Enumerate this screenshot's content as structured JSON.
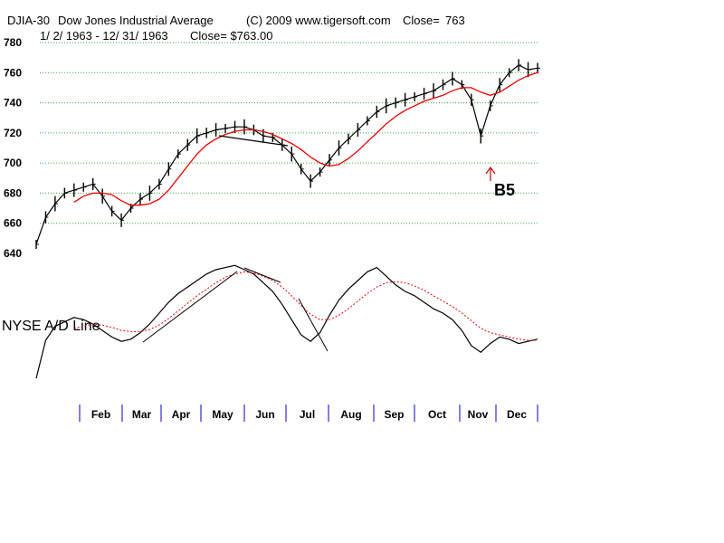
{
  "header": {
    "symbol": "DJIA-30",
    "name": "Dow Jones Industrial Average",
    "copyright": "(C) 2009 www.tigersoft.com",
    "close_label": "Close=",
    "close_value": "763",
    "date_range": "1/ 2/ 1963 -  12/ 31/ 1963",
    "close_line": "Close= $763.00"
  },
  "chart_data": [
    {
      "type": "line",
      "title": "DJIA-30  Dow Jones Industrial Average",
      "ylim": [
        640,
        780
      ],
      "y_ticks": [
        "780",
        "760",
        "740",
        "720",
        "700",
        "680",
        "660",
        "640"
      ],
      "grid": "horizontal dotted green",
      "x": [
        "1/2",
        "1/9",
        "1/16",
        "1/23",
        "1/30",
        "2/6",
        "2/13",
        "2/20",
        "2/27",
        "3/6",
        "3/13",
        "3/20",
        "3/27",
        "4/3",
        "4/10",
        "4/17",
        "4/24",
        "5/1",
        "5/8",
        "5/15",
        "5/22",
        "5/29",
        "6/5",
        "6/12",
        "6/19",
        "6/26",
        "7/3",
        "7/10",
        "7/17",
        "7/24",
        "7/31",
        "8/7",
        "8/14",
        "8/21",
        "8/28",
        "9/4",
        "9/11",
        "9/18",
        "9/25",
        "10/2",
        "10/9",
        "10/16",
        "10/23",
        "10/30",
        "11/6",
        "11/13",
        "11/20",
        "11/22",
        "11/27",
        "12/4",
        "12/11",
        "12/18",
        "12/25",
        "12/31"
      ],
      "series": [
        {
          "name": "DJIA",
          "color": "#000000",
          "values": [
            646,
            664,
            673,
            680,
            682,
            684,
            686,
            678,
            668,
            662,
            670,
            676,
            680,
            686,
            696,
            706,
            712,
            718,
            720,
            722,
            723,
            724,
            724,
            722,
            718,
            717,
            712,
            706,
            696,
            688,
            694,
            702,
            710,
            716,
            722,
            728,
            734,
            738,
            740,
            742,
            744,
            746,
            748,
            752,
            756,
            752,
            742,
            718,
            738,
            752,
            760,
            765,
            762,
            763
          ]
        },
        {
          "name": "Moving Average",
          "color": "#ee0000",
          "values": [
            null,
            null,
            null,
            null,
            674,
            678,
            680,
            680,
            679,
            675,
            672,
            672,
            673,
            676,
            682,
            690,
            698,
            706,
            712,
            716,
            719,
            721,
            722,
            722,
            721,
            719,
            716,
            713,
            709,
            704,
            700,
            698,
            699,
            703,
            708,
            714,
            720,
            726,
            731,
            735,
            738,
            741,
            743,
            745,
            748,
            750,
            750,
            747,
            745,
            747,
            751,
            755,
            758,
            760
          ]
        }
      ],
      "annotations": [
        {
          "text": "B5",
          "x": "11/22",
          "y": 712,
          "color": "#cc0000"
        }
      ]
    },
    {
      "type": "line",
      "title": "NYSE A/D Line",
      "x": [
        "1/2",
        "1/9",
        "1/16",
        "1/23",
        "1/30",
        "2/6",
        "2/13",
        "2/20",
        "2/27",
        "3/6",
        "3/13",
        "3/20",
        "3/27",
        "4/3",
        "4/10",
        "4/17",
        "4/24",
        "5/1",
        "5/8",
        "5/15",
        "5/22",
        "5/29",
        "6/5",
        "6/12",
        "6/19",
        "6/26",
        "7/3",
        "7/10",
        "7/17",
        "7/24",
        "7/31",
        "8/7",
        "8/14",
        "8/21",
        "8/28",
        "9/4",
        "9/11",
        "9/18",
        "9/25",
        "10/2",
        "10/9",
        "10/16",
        "10/23",
        "10/30",
        "11/6",
        "11/13",
        "11/20",
        "11/22",
        "11/27",
        "12/4",
        "12/11",
        "12/18",
        "12/25",
        "12/31"
      ],
      "series": [
        {
          "name": "NYSE A/D Line",
          "color": "#000000",
          "values": [
            10,
            45,
            58,
            62,
            66,
            64,
            60,
            54,
            48,
            44,
            46,
            52,
            60,
            70,
            80,
            88,
            94,
            100,
            106,
            110,
            112,
            114,
            110,
            106,
            98,
            90,
            78,
            64,
            50,
            44,
            52,
            68,
            82,
            92,
            100,
            108,
            112,
            104,
            96,
            90,
            86,
            80,
            74,
            70,
            64,
            54,
            40,
            34,
            42,
            48,
            46,
            42,
            44,
            46
          ]
        },
        {
          "name": "Moving Average",
          "color": "#ee0000",
          "values": [
            null,
            null,
            null,
            null,
            56,
            58,
            60,
            59,
            57,
            54,
            53,
            53,
            55,
            59,
            65,
            72,
            79,
            86,
            92,
            98,
            103,
            106,
            108,
            107,
            104,
            100,
            94,
            86,
            77,
            69,
            64,
            64,
            68,
            74,
            81,
            88,
            94,
            98,
            99,
            98,
            95,
            91,
            86,
            81,
            76,
            70,
            63,
            56,
            52,
            50,
            48,
            46,
            45,
            45
          ]
        }
      ]
    }
  ],
  "months": [
    "Feb",
    "Mar",
    "Apr",
    "May",
    "Jun",
    "Jul",
    "Aug",
    "Sep",
    "Oct",
    "Nov",
    "Dec"
  ],
  "ad_label": "NYSE A/D Line",
  "signal_label": "B5",
  "colors": {
    "price": "#000000",
    "ma": "#ee0000",
    "grid": "#33aa33",
    "month_tick": "#0000cc",
    "signal": "#cc0000"
  }
}
